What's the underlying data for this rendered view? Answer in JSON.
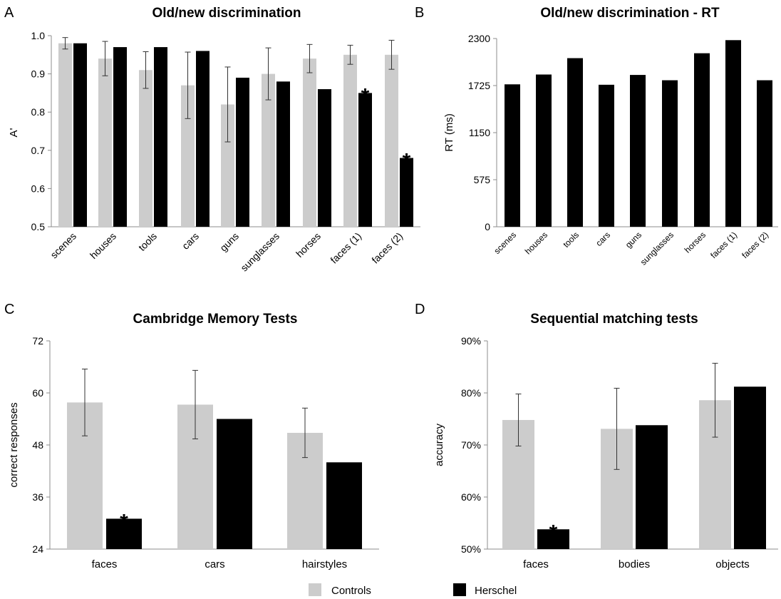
{
  "legend": {
    "entries": [
      {
        "name": "Controls",
        "color": "#cccccc"
      },
      {
        "name": "Herschel",
        "color": "#000000"
      }
    ]
  },
  "chart_data": [
    {
      "panel": "A",
      "type": "bar",
      "title": "Old/new discrimination",
      "xlabel": "",
      "ylabel": "A'",
      "ylim": [
        0.5,
        1.0
      ],
      "yticks": [
        "0.5",
        "0.6",
        "0.7",
        "0.8",
        "0.9",
        "1.0"
      ],
      "categories": [
        "scenes",
        "houses",
        "tools",
        "cars",
        "guns",
        "sunglasses",
        "horses",
        "faces (1)",
        "faces (2)"
      ],
      "series": [
        {
          "name": "Controls",
          "color": "#cccccc",
          "values": [
            0.98,
            0.94,
            0.91,
            0.87,
            0.82,
            0.9,
            0.94,
            0.95,
            0.95
          ],
          "error": [
            0.015,
            0.045,
            0.048,
            0.087,
            0.098,
            0.068,
            0.037,
            0.025,
            0.038
          ]
        },
        {
          "name": "Herschel",
          "color": "#000000",
          "values": [
            0.98,
            0.97,
            0.97,
            0.96,
            0.89,
            0.88,
            0.86,
            0.85,
            0.68
          ]
        }
      ],
      "annotations": [
        {
          "category": "faces (1)",
          "text": "*"
        },
        {
          "category": "faces (2)",
          "text": "*"
        }
      ]
    },
    {
      "panel": "B",
      "type": "bar",
      "title": "Old/new discrimination - RT",
      "xlabel": "",
      "ylabel": "RT (ms)",
      "ylim": [
        0,
        2300
      ],
      "yticks": [
        "0",
        "575",
        "1150",
        "1725",
        "2300"
      ],
      "categories": [
        "scenes",
        "houses",
        "tools",
        "cars",
        "guns",
        "sunglasses",
        "horses",
        "faces (1)",
        "faces (2)"
      ],
      "series": [
        {
          "name": "Herschel",
          "color": "#000000",
          "values": [
            1740,
            1860,
            2060,
            1735,
            1855,
            1790,
            2120,
            2280,
            1790
          ]
        }
      ]
    },
    {
      "panel": "C",
      "type": "bar",
      "title": "Cambridge Memory Tests",
      "xlabel": "",
      "ylabel": "correct responses",
      "ylim": [
        24,
        72
      ],
      "yticks": [
        "24",
        "36",
        "48",
        "60",
        "72"
      ],
      "categories": [
        "faces",
        "cars",
        "hairstyles"
      ],
      "series": [
        {
          "name": "Controls",
          "color": "#cccccc",
          "values": [
            57.8,
            57.3,
            50.8
          ],
          "error": [
            7.7,
            7.9,
            5.7
          ]
        },
        {
          "name": "Herschel",
          "color": "#000000",
          "values": [
            31,
            54,
            44
          ]
        }
      ],
      "annotations": [
        {
          "category": "faces",
          "text": "*"
        }
      ]
    },
    {
      "panel": "D",
      "type": "bar",
      "title": "Sequential matching tests",
      "xlabel": "",
      "ylabel": "accuracy",
      "ylim": [
        50,
        90
      ],
      "yticks": [
        "50%",
        "60%",
        "70%",
        "80%",
        "90%"
      ],
      "categories": [
        "faces",
        "bodies",
        "objects"
      ],
      "series": [
        {
          "name": "Controls",
          "color": "#cccccc",
          "values": [
            74.8,
            73.1,
            78.6
          ],
          "error": [
            5,
            7.8,
            7.1
          ]
        },
        {
          "name": "Herschel",
          "color": "#000000",
          "values": [
            53.8,
            73.8,
            81.2
          ]
        }
      ],
      "annotations": [
        {
          "category": "faces",
          "text": "*"
        }
      ]
    }
  ]
}
